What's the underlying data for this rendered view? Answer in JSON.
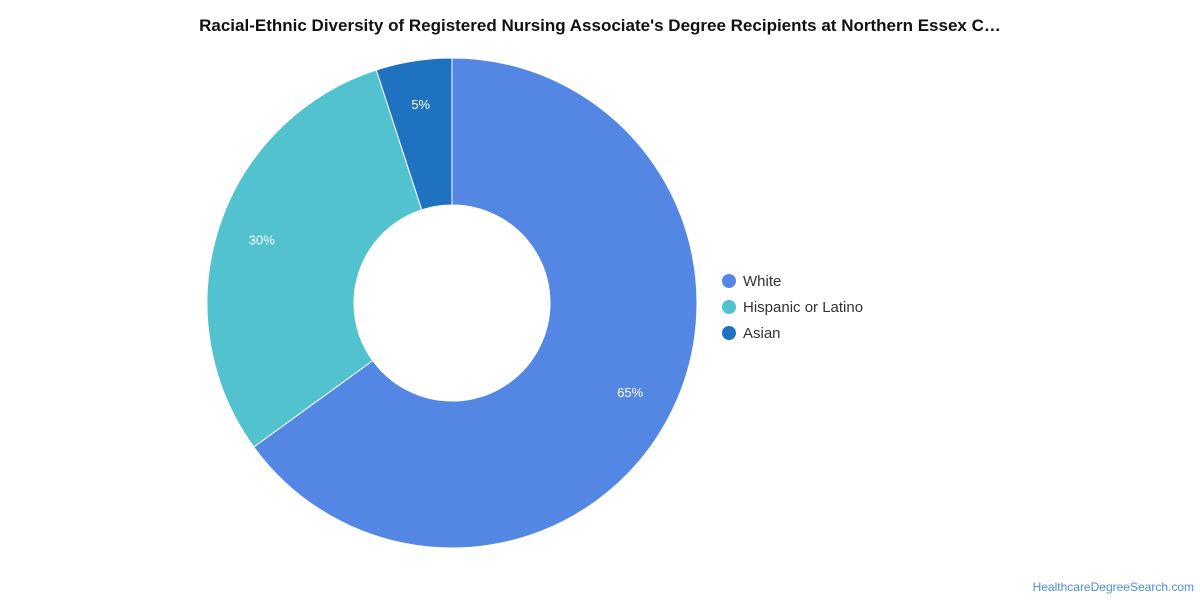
{
  "chart_data": {
    "type": "pie",
    "title": "Racial-Ethnic Diversity of Registered Nursing Associate's Degree Recipients at Northern Essex C…",
    "donut": true,
    "categories": [
      "White",
      "Hispanic or Latino",
      "Asian"
    ],
    "values": [
      65,
      30,
      5
    ],
    "labels": [
      "65%",
      "30%",
      "5%"
    ],
    "colors": [
      "#5486e3",
      "#52c2ce",
      "#1f72bf"
    ],
    "legend_placement": "right"
  },
  "watermark": "HealthcareDegreeSearch.com"
}
